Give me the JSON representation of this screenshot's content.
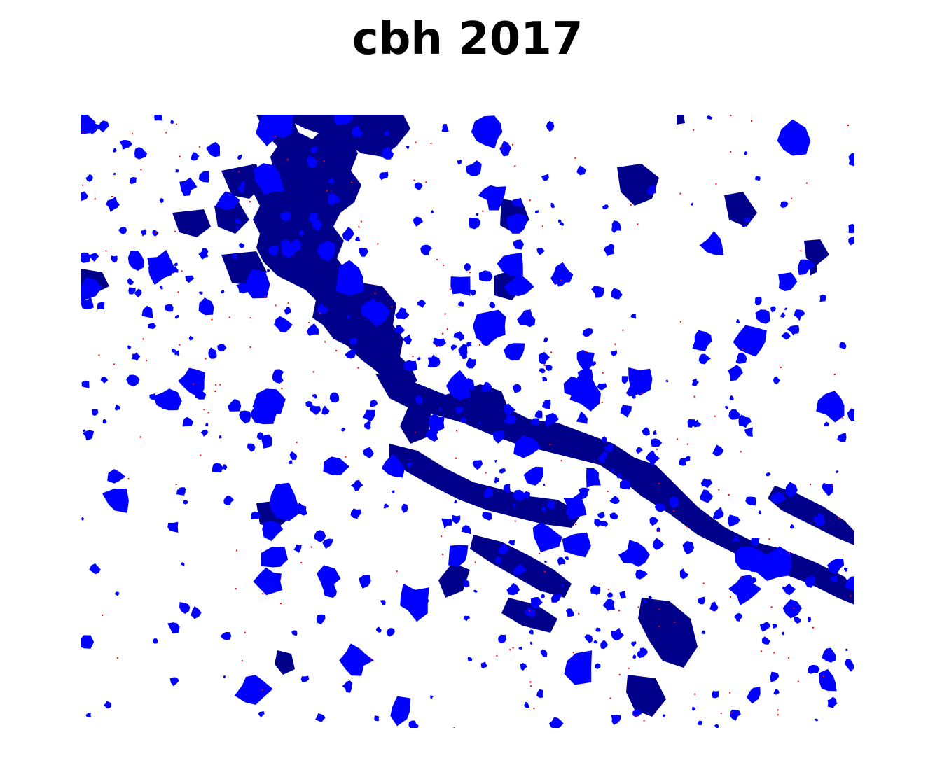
{
  "figure": {
    "title": "cbh 2017"
  },
  "map": {
    "classes": [
      {
        "color": "#00008b"
      },
      {
        "color": "#0000ff"
      },
      {
        "color": "#ff0000"
      }
    ]
  }
}
